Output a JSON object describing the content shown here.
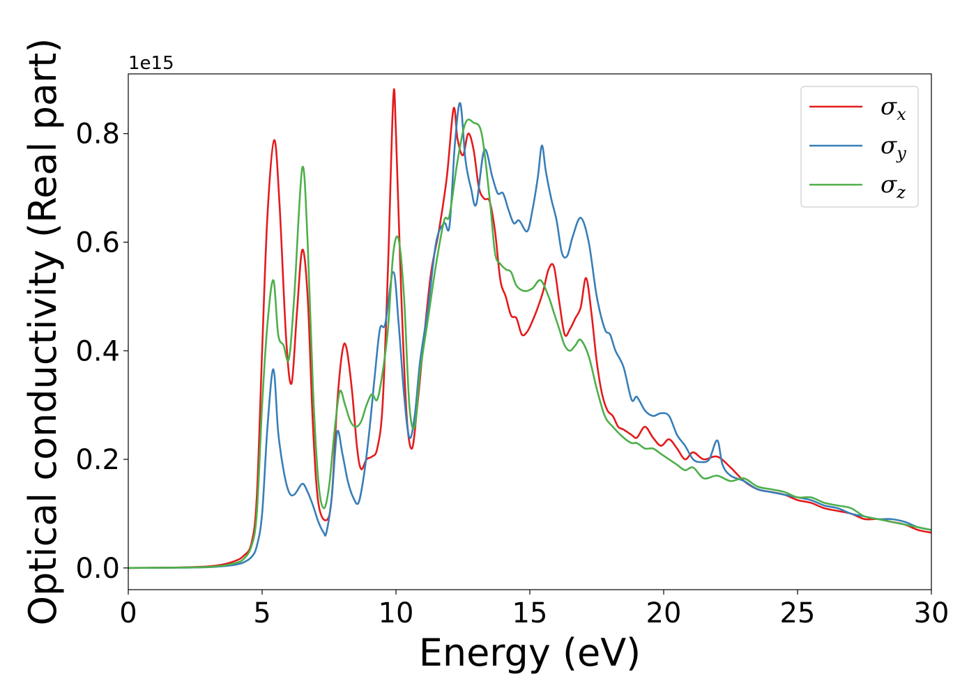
{
  "chart_data": {
    "type": "line",
    "xlabel": "Energy (eV)",
    "ylabel": "Optical conductivity (Real part)",
    "y_offset_label": "1e15",
    "xlim": [
      0,
      30
    ],
    "ylim": [
      -0.04,
      0.91
    ],
    "xticks": [
      0,
      5,
      10,
      15,
      20,
      25,
      30
    ],
    "xtick_labels": [
      "0",
      "5",
      "10",
      "15",
      "20",
      "25",
      "30"
    ],
    "yticks": [
      0.0,
      0.2,
      0.4,
      0.6,
      0.8
    ],
    "ytick_labels": [
      "0.0",
      "0.2",
      "0.4",
      "0.6",
      "0.8"
    ],
    "grid": false,
    "legend_position": "top-right",
    "series": [
      {
        "name": "σx",
        "symbol": "σ",
        "subscript": "x",
        "color": "#e41a1c",
        "x": [
          0,
          1,
          2,
          3,
          3.5,
          4,
          4.3,
          4.6,
          4.8,
          5.0,
          5.2,
          5.45,
          5.65,
          5.9,
          6.1,
          6.3,
          6.5,
          6.7,
          6.9,
          7.1,
          7.4,
          7.6,
          7.8,
          8.0,
          8.15,
          8.35,
          8.55,
          8.7,
          8.9,
          9.1,
          9.3,
          9.5,
          9.7,
          9.9,
          10.0,
          10.2,
          10.4,
          10.6,
          10.8,
          11.0,
          11.3,
          11.6,
          11.9,
          12.15,
          12.3,
          12.5,
          12.7,
          12.9,
          13.1,
          13.3,
          13.5,
          13.7,
          13.9,
          14.1,
          14.3,
          14.5,
          14.7,
          14.9,
          15.1,
          15.3,
          15.5,
          15.7,
          15.9,
          16.1,
          16.3,
          16.5,
          16.7,
          16.9,
          17.1,
          17.3,
          17.5,
          17.7,
          17.9,
          18.1,
          18.3,
          18.5,
          18.8,
          19.0,
          19.3,
          19.6,
          19.9,
          20.2,
          20.5,
          20.8,
          21.1,
          21.5,
          22.0,
          22.5,
          23.0,
          23.5,
          24.0,
          24.5,
          25.0,
          25.5,
          26.0,
          26.5,
          27.0,
          27.5,
          28.0,
          28.5,
          29.0,
          29.5,
          30.0
        ],
        "y": [
          0,
          0.0004,
          0.001,
          0.003,
          0.006,
          0.013,
          0.022,
          0.045,
          0.13,
          0.4,
          0.65,
          0.788,
          0.67,
          0.42,
          0.34,
          0.47,
          0.586,
          0.5,
          0.26,
          0.12,
          0.088,
          0.13,
          0.3,
          0.4,
          0.405,
          0.33,
          0.22,
          0.182,
          0.2,
          0.205,
          0.22,
          0.3,
          0.55,
          0.866,
          0.8,
          0.5,
          0.28,
          0.22,
          0.3,
          0.4,
          0.54,
          0.62,
          0.72,
          0.846,
          0.79,
          0.76,
          0.8,
          0.77,
          0.7,
          0.68,
          0.675,
          0.62,
          0.53,
          0.5,
          0.465,
          0.46,
          0.43,
          0.435,
          0.455,
          0.48,
          0.51,
          0.55,
          0.555,
          0.49,
          0.43,
          0.44,
          0.46,
          0.48,
          0.534,
          0.47,
          0.38,
          0.32,
          0.29,
          0.28,
          0.26,
          0.255,
          0.245,
          0.24,
          0.26,
          0.24,
          0.225,
          0.237,
          0.22,
          0.2,
          0.213,
          0.2,
          0.205,
          0.185,
          0.16,
          0.145,
          0.14,
          0.135,
          0.125,
          0.12,
          0.11,
          0.105,
          0.1,
          0.09,
          0.09,
          0.085,
          0.08,
          0.07,
          0.065
        ]
      },
      {
        "name": "σy",
        "symbol": "σ",
        "subscript": "y",
        "color": "#377eb8",
        "x": [
          0,
          1,
          2,
          3,
          3.5,
          4,
          4.3,
          4.6,
          4.8,
          5.0,
          5.2,
          5.42,
          5.6,
          5.8,
          6.0,
          6.2,
          6.5,
          6.7,
          6.9,
          7.1,
          7.3,
          7.4,
          7.6,
          7.8,
          8.0,
          8.2,
          8.4,
          8.6,
          8.8,
          9.0,
          9.2,
          9.4,
          9.6,
          9.9,
          10.1,
          10.3,
          10.5,
          10.7,
          10.9,
          11.2,
          11.5,
          11.8,
          12.0,
          12.2,
          12.4,
          12.6,
          12.8,
          13.0,
          13.3,
          13.6,
          13.8,
          14.0,
          14.2,
          14.4,
          14.6,
          14.9,
          15.1,
          15.3,
          15.45,
          15.6,
          15.8,
          16.0,
          16.2,
          16.4,
          16.6,
          16.9,
          17.2,
          17.5,
          17.8,
          18.0,
          18.2,
          18.5,
          18.8,
          19.0,
          19.3,
          19.6,
          19.9,
          20.2,
          20.5,
          20.8,
          21.1,
          21.4,
          21.7,
          22.0,
          22.2,
          22.5,
          23.0,
          23.5,
          24.0,
          24.5,
          25.0,
          25.5,
          26.0,
          26.5,
          27.0,
          27.5,
          28.0,
          28.5,
          29.0,
          29.5,
          30.0
        ],
        "y": [
          0,
          0.0002,
          0.0005,
          0.0015,
          0.003,
          0.006,
          0.01,
          0.02,
          0.04,
          0.1,
          0.26,
          0.366,
          0.25,
          0.18,
          0.14,
          0.135,
          0.155,
          0.14,
          0.115,
          0.085,
          0.065,
          0.065,
          0.13,
          0.25,
          0.21,
          0.16,
          0.13,
          0.12,
          0.17,
          0.25,
          0.35,
          0.44,
          0.45,
          0.545,
          0.45,
          0.32,
          0.24,
          0.28,
          0.38,
          0.48,
          0.6,
          0.635,
          0.63,
          0.78,
          0.856,
          0.75,
          0.7,
          0.67,
          0.77,
          0.72,
          0.69,
          0.69,
          0.66,
          0.635,
          0.64,
          0.62,
          0.66,
          0.72,
          0.778,
          0.73,
          0.68,
          0.64,
          0.58,
          0.575,
          0.61,
          0.645,
          0.6,
          0.5,
          0.44,
          0.43,
          0.4,
          0.37,
          0.31,
          0.315,
          0.29,
          0.28,
          0.285,
          0.28,
          0.245,
          0.225,
          0.2,
          0.195,
          0.2,
          0.235,
          0.19,
          0.17,
          0.16,
          0.145,
          0.14,
          0.135,
          0.13,
          0.125,
          0.115,
          0.11,
          0.1,
          0.095,
          0.09,
          0.09,
          0.085,
          0.075,
          0.07
        ]
      },
      {
        "name": "σz",
        "symbol": "σ",
        "subscript": "z",
        "color": "#4daf4a",
        "x": [
          0,
          1,
          2,
          3,
          3.5,
          4,
          4.3,
          4.6,
          4.8,
          5.0,
          5.2,
          5.42,
          5.6,
          5.8,
          6.0,
          6.2,
          6.5,
          6.7,
          6.9,
          7.1,
          7.3,
          7.5,
          7.7,
          7.9,
          8.1,
          8.3,
          8.5,
          8.7,
          8.9,
          9.1,
          9.3,
          9.5,
          9.7,
          9.9,
          10.1,
          10.3,
          10.5,
          10.7,
          10.9,
          11.2,
          11.5,
          11.8,
          12.0,
          12.3,
          12.6,
          12.9,
          13.2,
          13.5,
          13.7,
          13.9,
          14.1,
          14.3,
          14.5,
          14.8,
          15.1,
          15.4,
          15.7,
          15.9,
          16.1,
          16.3,
          16.5,
          16.7,
          16.9,
          17.2,
          17.5,
          17.8,
          18.1,
          18.5,
          18.8,
          19.0,
          19.3,
          19.6,
          19.9,
          20.2,
          20.5,
          20.8,
          21.1,
          21.5,
          22.0,
          22.5,
          23.0,
          23.5,
          24.0,
          24.5,
          25.0,
          25.5,
          26.0,
          26.5,
          27.0,
          27.5,
          28.0,
          28.5,
          29.0,
          29.5,
          30.0
        ],
        "y": [
          0,
          0.0003,
          0.0008,
          0.002,
          0.004,
          0.009,
          0.016,
          0.04,
          0.1,
          0.3,
          0.45,
          0.53,
          0.43,
          0.41,
          0.385,
          0.5,
          0.737,
          0.6,
          0.33,
          0.16,
          0.11,
          0.15,
          0.25,
          0.325,
          0.3,
          0.27,
          0.26,
          0.27,
          0.3,
          0.32,
          0.31,
          0.36,
          0.44,
          0.58,
          0.605,
          0.5,
          0.3,
          0.26,
          0.36,
          0.46,
          0.56,
          0.64,
          0.65,
          0.75,
          0.82,
          0.82,
          0.8,
          0.68,
          0.58,
          0.56,
          0.55,
          0.545,
          0.52,
          0.51,
          0.515,
          0.53,
          0.5,
          0.47,
          0.44,
          0.41,
          0.4,
          0.41,
          0.42,
          0.39,
          0.33,
          0.28,
          0.26,
          0.24,
          0.23,
          0.23,
          0.22,
          0.22,
          0.21,
          0.2,
          0.19,
          0.18,
          0.185,
          0.165,
          0.17,
          0.16,
          0.165,
          0.15,
          0.145,
          0.14,
          0.13,
          0.13,
          0.12,
          0.115,
          0.11,
          0.095,
          0.09,
          0.085,
          0.08,
          0.075,
          0.07
        ]
      }
    ]
  }
}
